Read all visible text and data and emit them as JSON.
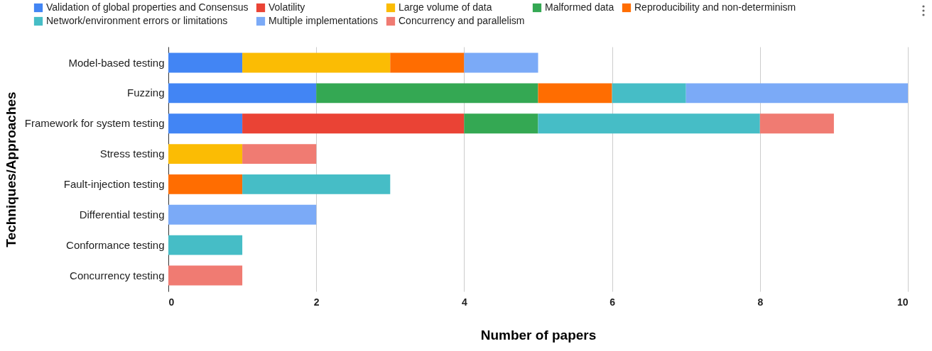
{
  "chart_data": {
    "type": "bar",
    "orientation": "horizontal",
    "stacked": true,
    "xlabel": "Number of papers",
    "ylabel": "Techniques/Approaches",
    "categories": [
      "Model-based testing",
      "Fuzzing",
      "Framework for system testing",
      "Stress testing",
      "Fault-injection testing",
      "Differential testing",
      "Conformance testing",
      "Concurrency testing"
    ],
    "series": [
      {
        "name": "Validation of global properties and Consensus",
        "color": "#4285f4",
        "values": [
          1,
          2,
          1,
          null,
          null,
          null,
          null,
          null
        ]
      },
      {
        "name": "Volatility",
        "color": "#ea4335",
        "values": [
          null,
          null,
          3,
          null,
          null,
          null,
          null,
          null
        ]
      },
      {
        "name": "Large volume of data",
        "color": "#fbbc04",
        "values": [
          2,
          null,
          null,
          1,
          null,
          null,
          null,
          null
        ]
      },
      {
        "name": "Malformed data",
        "color": "#34a853",
        "values": [
          null,
          3,
          1,
          null,
          null,
          null,
          null,
          null
        ]
      },
      {
        "name": "Reproducibility and non-determinism",
        "color": "#ff6d01",
        "values": [
          1,
          1,
          null,
          null,
          1,
          null,
          null,
          null
        ]
      },
      {
        "name": "Network/environment errors or limitations",
        "color": "#46bdc6",
        "values": [
          null,
          1,
          3,
          null,
          2,
          null,
          1,
          null
        ]
      },
      {
        "name": "Multiple implementations",
        "color": "#7baaf7",
        "values": [
          1,
          3,
          null,
          null,
          null,
          2,
          null,
          null
        ]
      },
      {
        "name": "Concurrency and parallelism",
        "color": "#f07b72",
        "values": [
          null,
          null,
          1,
          1,
          null,
          null,
          null,
          1
        ]
      }
    ],
    "xlim": [
      0,
      10
    ],
    "xticks": [
      0,
      2,
      4,
      6,
      8,
      10
    ],
    "grid": "x",
    "legend": "top"
  }
}
